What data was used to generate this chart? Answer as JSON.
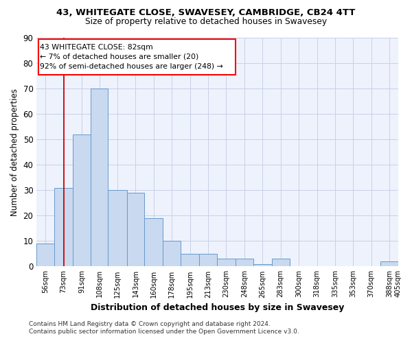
{
  "title1": "43, WHITEGATE CLOSE, SWAVESEY, CAMBRIDGE, CB24 4TT",
  "title2": "Size of property relative to detached houses in Swavesey",
  "xlabel": "Distribution of detached houses by size in Swavesey",
  "ylabel": "Number of detached properties",
  "bar_left_edges": [
    56,
    73,
    91,
    108,
    125,
    143,
    160,
    178,
    195,
    213,
    230,
    248,
    265,
    283,
    300,
    318,
    335,
    353,
    370,
    388
  ],
  "bar_right_edges": [
    73,
    91,
    108,
    125,
    143,
    160,
    178,
    195,
    213,
    230,
    248,
    265,
    283,
    300,
    318,
    335,
    353,
    370,
    388,
    405
  ],
  "bar_heights": [
    9,
    31,
    52,
    70,
    30,
    29,
    19,
    10,
    5,
    5,
    3,
    3,
    1,
    3,
    0,
    0,
    0,
    0,
    0,
    2
  ],
  "bar_color": "#c8d9f0",
  "bar_edgecolor": "#6699cc",
  "vline_x": 82,
  "vline_color": "#cc0000",
  "annotation_line1": "43 WHITEGATE CLOSE: 82sqm",
  "annotation_line2": "← 7% of detached houses are smaller (20)",
  "annotation_line3": "92% of semi-detached houses are larger (248) →",
  "ylim_max": 90,
  "yticks": [
    0,
    10,
    20,
    30,
    40,
    50,
    60,
    70,
    80,
    90
  ],
  "xlim_min": 56,
  "xlim_max": 405,
  "grid_color": "#c8d0e8",
  "bg_color": "#eef2fc",
  "footnote1": "Contains HM Land Registry data © Crown copyright and database right 2024.",
  "footnote2": "Contains public sector information licensed under the Open Government Licence v3.0."
}
